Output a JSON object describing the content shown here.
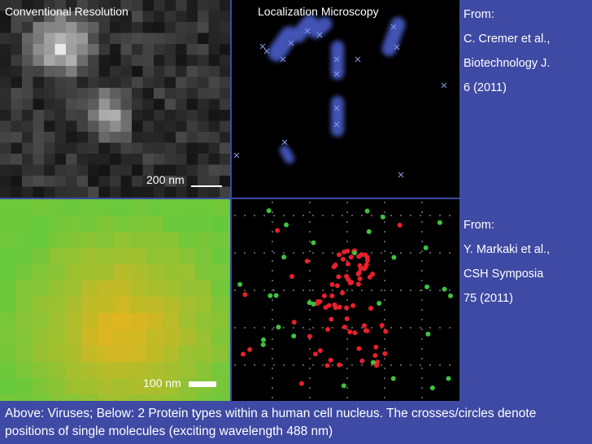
{
  "panels": {
    "top_left_title": "Conventional Resolution",
    "top_middle_title": "Localization Microscopy",
    "top_scalebar": "200 nm",
    "bottom_scalebar": "100 nm"
  },
  "citations": {
    "top": [
      "From:",
      "C. Cremer et al.,",
      "Biotechnology J.",
      "6 (2011)"
    ],
    "bottom": [
      "From:",
      "Y. Markaki et al.,",
      "CSH Symposia",
      "75 (2011)"
    ]
  },
  "caption": "Above: Viruses; Below: 2 Protein types within a human cell nucleus. The crosses/circles denote positions of single molecules (exciting wavelength 488 nm)",
  "colors": {
    "background": "#3e4aa3",
    "red_molecule": "#e8202a",
    "green_molecule": "#3fc23f",
    "virus_glow": "#4a5cc8"
  }
}
